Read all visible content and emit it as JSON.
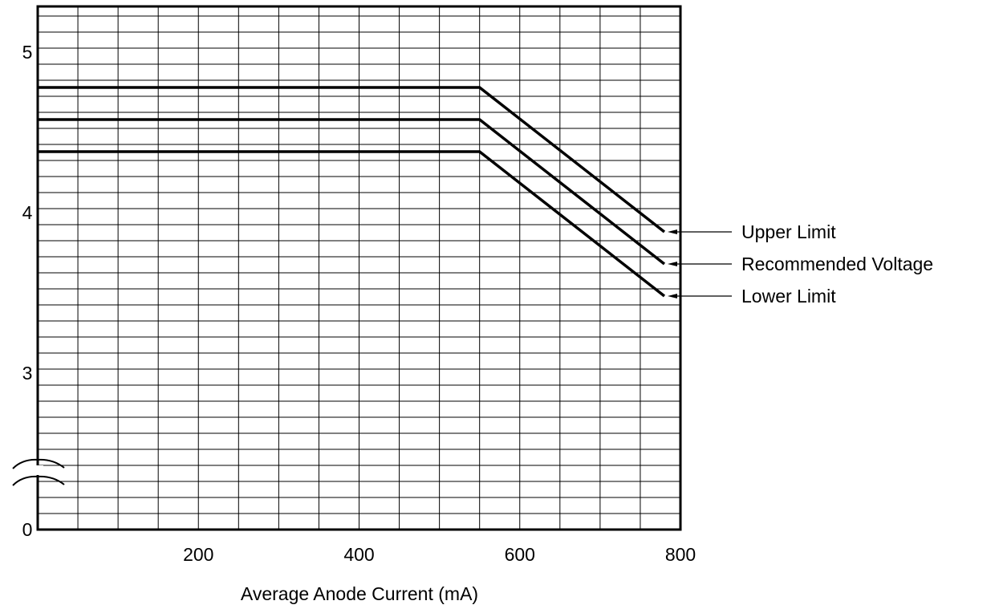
{
  "chart_data": {
    "type": "line",
    "title": "",
    "xlabel": "Average Anode Current (mA)",
    "ylabel": "",
    "xlim": [
      0,
      800
    ],
    "ylim_display": [
      0,
      5.3
    ],
    "y_axis_break": "between 0 and 3 (≈ symbol)",
    "grid": true,
    "x_ticks": [
      {
        "value": 200,
        "label": "200"
      },
      {
        "value": 400,
        "label": "400"
      },
      {
        "value": 600,
        "label": "600"
      },
      {
        "value": 800,
        "label": "800"
      }
    ],
    "y_ticks": [
      {
        "value": 0,
        "label": "0"
      },
      {
        "value": 3,
        "label": "3"
      },
      {
        "value": 4,
        "label": "4"
      },
      {
        "value": 5,
        "label": "5"
      }
    ],
    "legend_placement": "right of plot, labels with leader lines to line ends",
    "series": [
      {
        "name": "Upper Limit",
        "x": [
          0,
          550,
          780
        ],
        "y": [
          4.78,
          4.78,
          3.88
        ]
      },
      {
        "name": "Recommended Voltage",
        "x": [
          0,
          550,
          780
        ],
        "y": [
          4.58,
          4.58,
          3.68
        ]
      },
      {
        "name": "Lower Limit",
        "x": [
          0,
          550,
          780
        ],
        "y": [
          4.38,
          4.38,
          3.48
        ]
      }
    ],
    "colors": {
      "line": "#000000",
      "grid": "#000000",
      "background": "#ffffff"
    }
  }
}
